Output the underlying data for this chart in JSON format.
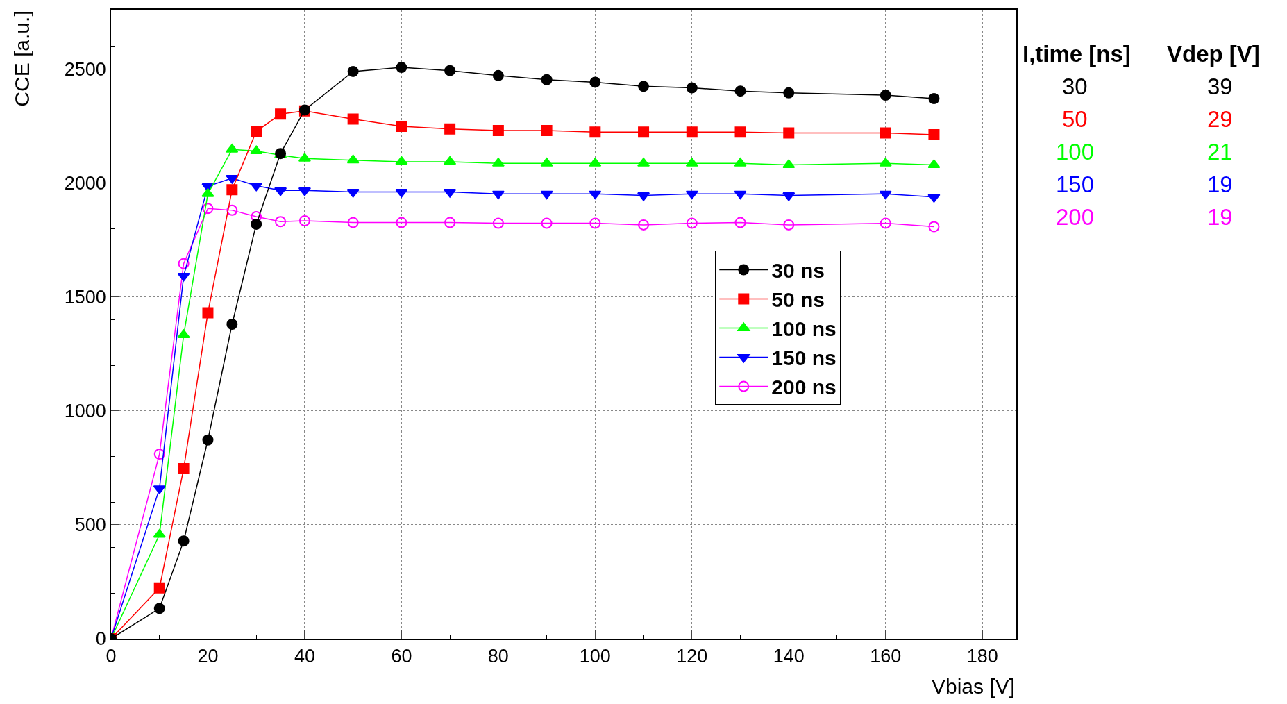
{
  "chart_data": {
    "type": "line",
    "xlabel": "Vbias [V]",
    "ylabel": "CCE [a.u.]",
    "x": [
      0,
      10,
      15,
      20,
      25,
      30,
      35,
      40,
      50,
      60,
      70,
      80,
      90,
      100,
      110,
      120,
      130,
      140,
      160,
      170
    ],
    "xlim": [
      0,
      187
    ],
    "xticks": [
      0,
      20,
      40,
      60,
      80,
      100,
      120,
      140,
      160,
      180
    ],
    "ylim": [
      0,
      2760
    ],
    "yticks": [
      0,
      500,
      1000,
      1500,
      2000,
      2500
    ],
    "grid": true,
    "legend": "right",
    "line_style": "solid",
    "series": [
      {
        "name": "30 ns",
        "color": "#000000",
        "marker": "circle",
        "values": [
          0,
          133,
          429,
          872,
          1380,
          1819,
          2129,
          2320,
          2489,
          2507,
          2493,
          2471,
          2453,
          2442,
          2424,
          2417,
          2403,
          2395,
          2385,
          2370
        ]
      },
      {
        "name": "50 ns",
        "color": "#ff0000",
        "marker": "square",
        "values": [
          0,
          223,
          746,
          1430,
          1970,
          2226,
          2302,
          2316,
          2280,
          2248,
          2237,
          2230,
          2230,
          2223,
          2223,
          2223,
          2223,
          2219,
          2219,
          2212
        ]
      },
      {
        "name": "100 ns",
        "color": "#00ff00",
        "marker": "triangle",
        "values": [
          0,
          457,
          1333,
          1952,
          2147,
          2140,
          2122,
          2107,
          2100,
          2093,
          2093,
          2086,
          2086,
          2086,
          2086,
          2086,
          2086,
          2079,
          2086,
          2079
        ]
      },
      {
        "name": "150 ns",
        "color": "#0000ff",
        "marker": "triangle-down",
        "values": [
          0,
          659,
          1592,
          1985,
          2021,
          1988,
          1967,
          1967,
          1960,
          1960,
          1960,
          1952,
          1952,
          1952,
          1945,
          1952,
          1952,
          1945,
          1952,
          1938
        ]
      },
      {
        "name": "200 ns",
        "color": "#ff00ff",
        "marker": "circle-open",
        "values": [
          0,
          810,
          1646,
          1888,
          1880,
          1852,
          1830,
          1834,
          1826,
          1826,
          1826,
          1823,
          1823,
          1823,
          1816,
          1823,
          1826,
          1816,
          1823,
          1808
        ]
      }
    ],
    "annotations": [
      "I,time [ns]",
      "Vdep [V]",
      "30",
      "39",
      "50",
      "29",
      "100",
      "21",
      "150",
      "19",
      "200",
      "19"
    ]
  }
}
